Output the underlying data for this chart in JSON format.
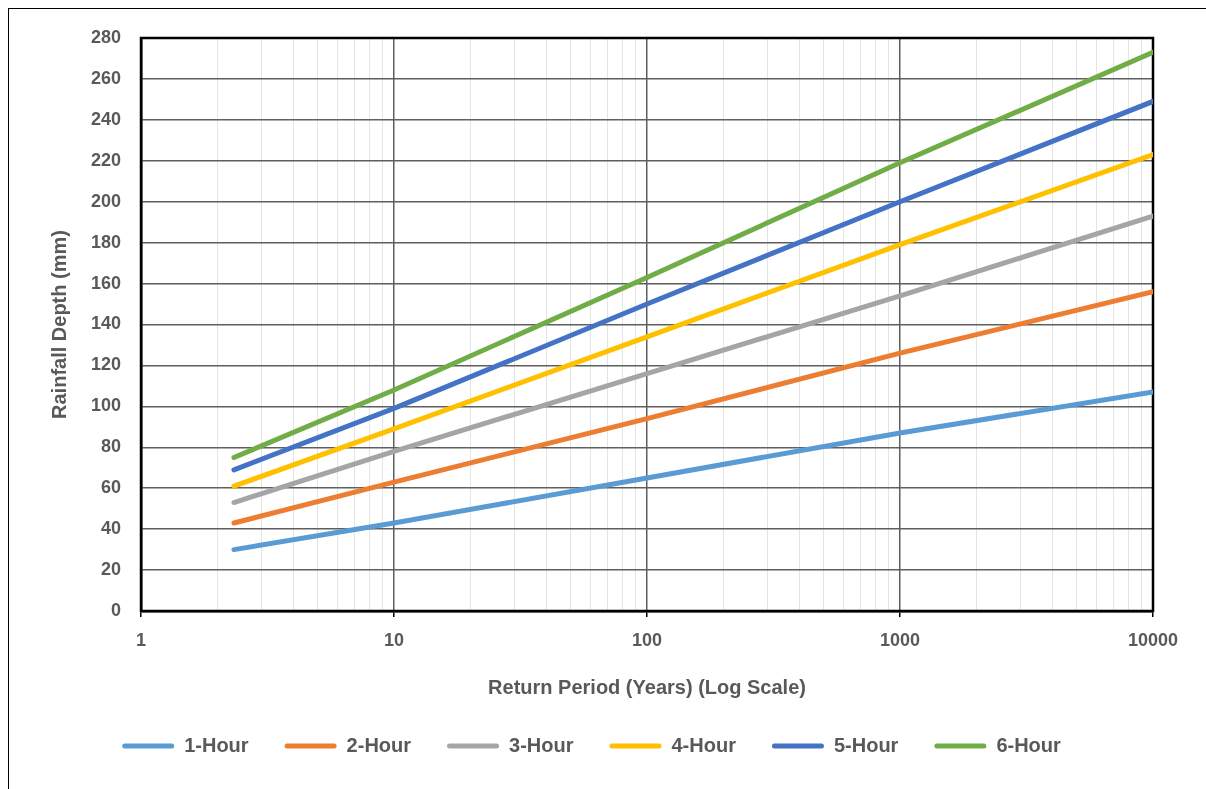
{
  "chart_data": {
    "type": "line",
    "xlabel": "Return Period (Years) (Log Scale)",
    "ylabel": "Rainfall Depth (mm)",
    "x": [
      2.33,
      10,
      100,
      1000,
      10000
    ],
    "series": [
      {
        "name": "1-Hour",
        "color": "#5b9bd5",
        "values": [
          30,
          43,
          65,
          87,
          107
        ]
      },
      {
        "name": "2-Hour",
        "color": "#ed7d31",
        "values": [
          43,
          63,
          94,
          126,
          156
        ]
      },
      {
        "name": "3-Hour",
        "color": "#a5a5a5",
        "values": [
          53,
          78,
          116,
          154,
          193
        ]
      },
      {
        "name": "4-Hour",
        "color": "#ffc000",
        "values": [
          61,
          89,
          134,
          179,
          223
        ]
      },
      {
        "name": "5-Hour",
        "color": "#4472c4",
        "values": [
          69,
          99,
          150,
          200,
          249
        ]
      },
      {
        "name": "6-Hour",
        "color": "#70ad47",
        "values": [
          75,
          108,
          163,
          219,
          273
        ]
      }
    ],
    "log": "x",
    "xlim": [
      1,
      10000
    ],
    "xticks": [
      1,
      {
        "value": 2,
        "label": null
      },
      {
        "value": 3,
        "label": null
      },
      {
        "value": 4,
        "label": null
      },
      {
        "value": 5,
        "label": null
      },
      {
        "value": 6,
        "label": null
      },
      {
        "value": 7,
        "label": null
      },
      {
        "value": 8,
        "label": null
      },
      {
        "value": 9,
        "label": null
      },
      10,
      {
        "value": 20,
        "label": null
      },
      {
        "value": 30,
        "label": null
      },
      {
        "value": 40,
        "label": null
      },
      {
        "value": 50,
        "label": null
      },
      {
        "value": 60,
        "label": null
      },
      {
        "value": 70,
        "label": null
      },
      {
        "value": 80,
        "label": null
      },
      {
        "value": 90,
        "label": null
      },
      100,
      {
        "value": 200,
        "label": null
      },
      {
        "value": 300,
        "label": null
      },
      {
        "value": 400,
        "label": null
      },
      {
        "value": 500,
        "label": null
      },
      {
        "value": 600,
        "label": null
      },
      {
        "value": 700,
        "label": null
      },
      {
        "value": 800,
        "label": null
      },
      {
        "value": 900,
        "label": null
      },
      1000,
      {
        "value": 2000,
        "label": null
      },
      {
        "value": 3000,
        "label": null
      },
      {
        "value": 4000,
        "label": null
      },
      {
        "value": 5000,
        "label": null
      },
      {
        "value": 6000,
        "label": null
      },
      {
        "value": 7000,
        "label": null
      },
      {
        "value": 8000,
        "label": null
      },
      {
        "value": 9000,
        "label": null
      },
      10000
    ],
    "ylim": [
      0,
      280
    ],
    "yticks": [
      0,
      20,
      40,
      60,
      80,
      100,
      120,
      140,
      160,
      180,
      200,
      220,
      240,
      260,
      280
    ],
    "grid": true,
    "legend": "bottom",
    "marker": "none",
    "line_style": "solid"
  }
}
